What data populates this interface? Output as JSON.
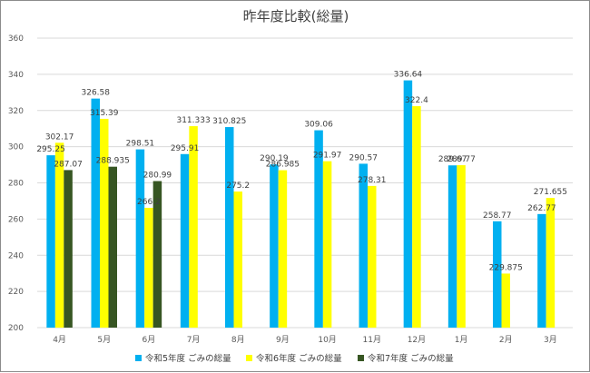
{
  "chart_data": {
    "type": "bar",
    "title": "昨年度比較(総量)",
    "xlabel": "",
    "ylabel": "",
    "ylim": [
      200,
      360
    ],
    "yticks": [
      200,
      220,
      240,
      260,
      280,
      300,
      320,
      340,
      360
    ],
    "grid": true,
    "legend_position": "bottom",
    "categories": [
      "4月",
      "5月",
      "6月",
      "7月",
      "8月",
      "9月",
      "10月",
      "11月",
      "12月",
      "1月",
      "2月",
      "3月"
    ],
    "series": [
      {
        "name": "令和5年度 ごみの総量",
        "color": "#00b0f0",
        "values": [
          295.25,
          326.58,
          298.51,
          295.91,
          310.825,
          290.19,
          309.06,
          290.57,
          336.64,
          289.67,
          258.77,
          262.77
        ],
        "labels": [
          "295.25",
          "326.58",
          "298.51",
          "295.91",
          "310.825",
          "290.19",
          "309.06",
          "290.57",
          "336.64",
          "289.67",
          "258.77",
          "262.77"
        ]
      },
      {
        "name": "令和6年度 ごみの総量",
        "color": "#ffff00",
        "values": [
          302.17,
          315.39,
          266.2,
          311.333,
          275.2,
          286.985,
          291.97,
          278.31,
          322.4,
          289.77,
          229.875,
          271.655
        ],
        "labels": [
          "302.17",
          "315.39",
          "266.2",
          "311.333",
          "275.2",
          "286.985",
          "291.97",
          "278.31",
          "322.4",
          "289.77",
          "229.875",
          "271.655"
        ]
      },
      {
        "name": "令和7年度 ごみの総量",
        "color": "#375623",
        "values": [
          287.07,
          288.935,
          280.99,
          null,
          null,
          null,
          null,
          null,
          null,
          null,
          null,
          null
        ],
        "labels": [
          "287.07",
          "288.935",
          "280.99",
          "",
          "",
          "",
          "",
          "",
          "",
          "",
          "",
          ""
        ]
      }
    ]
  }
}
